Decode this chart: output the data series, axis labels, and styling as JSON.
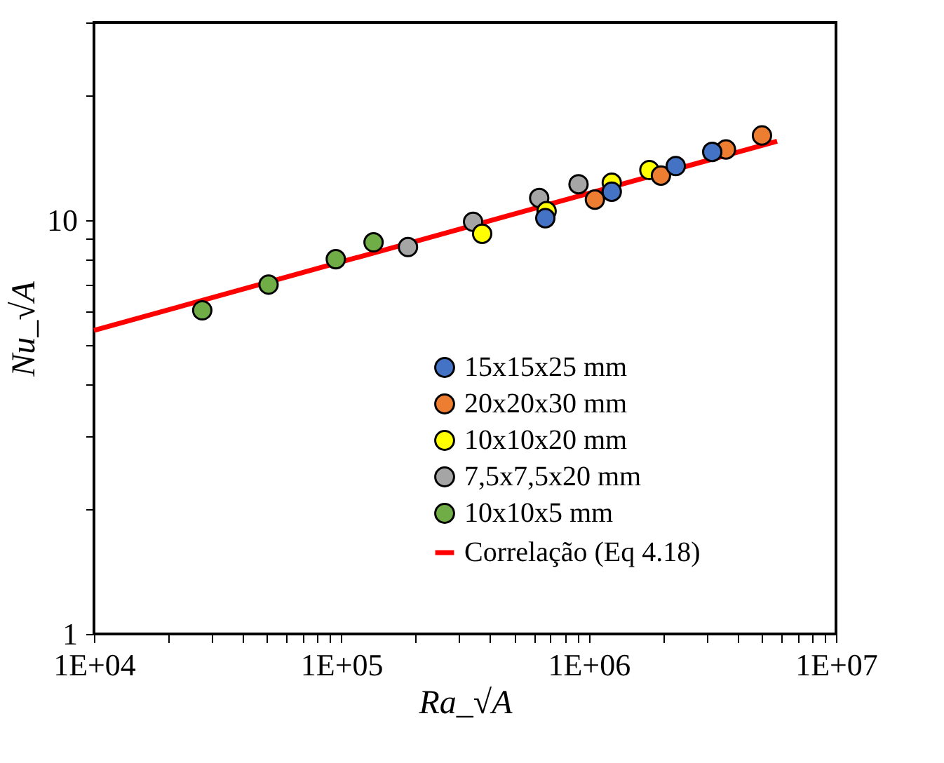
{
  "chart_data": {
    "type": "scatter",
    "xlabel": "Ra_√A",
    "ylabel": "Nu_√A",
    "log": "xy",
    "grid": false,
    "legend": "bottom right",
    "marker": "circle",
    "xlim": [
      10000,
      10000000
    ],
    "ylim": [
      1,
      30
    ],
    "xticks": [
      {
        "value": 10000,
        "label": "1E+04"
      },
      {
        "value": 20000,
        "label": null
      },
      {
        "value": 30000,
        "label": null
      },
      {
        "value": 40000,
        "label": null
      },
      {
        "value": 50000,
        "label": null
      },
      {
        "value": 60000,
        "label": null
      },
      {
        "value": 70000,
        "label": null
      },
      {
        "value": 80000,
        "label": null
      },
      {
        "value": 90000,
        "label": null
      },
      {
        "value": 100000,
        "label": "1E+05"
      },
      {
        "value": 200000,
        "label": null
      },
      {
        "value": 300000,
        "label": null
      },
      {
        "value": 400000,
        "label": null
      },
      {
        "value": 500000,
        "label": null
      },
      {
        "value": 600000,
        "label": null
      },
      {
        "value": 700000,
        "label": null
      },
      {
        "value": 800000,
        "label": null
      },
      {
        "value": 900000,
        "label": null
      },
      {
        "value": 1000000,
        "label": "1E+06"
      },
      {
        "value": 2000000,
        "label": null
      },
      {
        "value": 3000000,
        "label": null
      },
      {
        "value": 4000000,
        "label": null
      },
      {
        "value": 5000000,
        "label": null
      },
      {
        "value": 6000000,
        "label": null
      },
      {
        "value": 7000000,
        "label": null
      },
      {
        "value": 8000000,
        "label": null
      },
      {
        "value": 9000000,
        "label": null
      },
      {
        "value": 10000000,
        "label": "1E+07"
      }
    ],
    "yticks": [
      1,
      {
        "value": 2,
        "label": null
      },
      {
        "value": 3,
        "label": null
      },
      {
        "value": 4,
        "label": null
      },
      {
        "value": 5,
        "label": null
      },
      {
        "value": 6,
        "label": null
      },
      {
        "value": 7,
        "label": null
      },
      {
        "value": 8,
        "label": null
      },
      {
        "value": 9,
        "label": null
      },
      10,
      {
        "value": 20,
        "label": null
      },
      {
        "value": 30,
        "label": null
      }
    ],
    "series": [
      {
        "name": "15x15x25 mm",
        "color": "#4472c4",
        "x": [
          668000,
          1240000,
          2250000,
          3160000
        ],
        "values": [
          10.1,
          11.7,
          13.5,
          14.6
        ]
      },
      {
        "name": "20x20x30 mm",
        "color": "#ed7d31",
        "x": [
          1060000,
          1960000,
          3590000,
          5020000
        ],
        "values": [
          11.2,
          12.8,
          14.8,
          16.0
        ]
      },
      {
        "name": "10x10x20 mm",
        "color": "#ffff00",
        "x": [
          371000,
          676000,
          1240000,
          1760000
        ],
        "values": [
          9.26,
          10.5,
          12.3,
          13.2
        ]
      },
      {
        "name": "7,5x7,5x20 mm",
        "color": "#a5a5a5",
        "x": [
          186000,
          341000,
          631000,
          910000
        ],
        "values": [
          8.6,
          9.9,
          11.3,
          12.2
        ]
      },
      {
        "name": "10x10x5 mm",
        "color": "#70ad47",
        "x": [
          27400,
          50800,
          95000,
          135000
        ],
        "values": [
          6.05,
          6.98,
          8.04,
          8.83
        ]
      },
      {
        "name": "Correlação (Eq 4.18)",
        "type": "line",
        "color": "#ff0000",
        "marker": "none",
        "line_style": "solid",
        "x": [
          10000,
          5780000
        ],
        "values": [
          5.41,
          15.5
        ]
      }
    ]
  }
}
